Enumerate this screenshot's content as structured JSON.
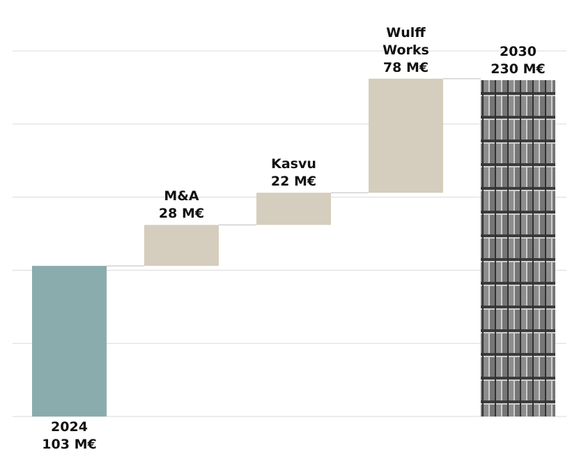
{
  "chart_data": {
    "type": "waterfall",
    "categories": [
      "2024",
      "M&A",
      "Kasvu",
      "Wulff Works",
      "2030"
    ],
    "values": [
      103,
      28,
      22,
      78,
      230
    ],
    "value_labels": [
      "103 M€",
      "28 M€",
      "22 M€",
      "78 M€",
      "230 M€"
    ],
    "totals": [
      true,
      false,
      false,
      false,
      true
    ],
    "colors": [
      "#8aacac",
      "#d5cdbd",
      "#d5cdbd",
      "#d5cdbd",
      "#9c9c9c"
    ],
    "ylim": [
      0,
      250
    ],
    "yticks": [
      0,
      50,
      100,
      150,
      200,
      250
    ],
    "grid": true
  }
}
